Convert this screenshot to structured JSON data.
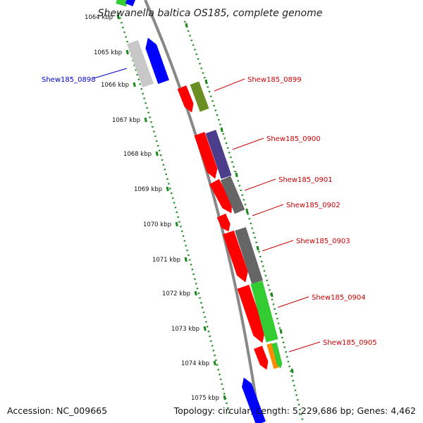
{
  "title": "Shewanella baltica OS185, complete genome",
  "ticks": [
    "1064 kbp",
    "1065 kbp",
    "1066 kbp",
    "1067 kbp",
    "1068 kbp",
    "1069 kbp",
    "1070 kbp",
    "1071 kbp",
    "1072 kbp",
    "1073 kbp",
    "1074 kbp",
    "1075 kbp"
  ],
  "gene_labels": [
    {
      "name": "Shew185_0898",
      "color": "#0000cc"
    },
    {
      "name": "Shew185_0899",
      "color": "#cc0000"
    },
    {
      "name": "Shew185_0900",
      "color": "#cc0000"
    },
    {
      "name": "Shew185_0901",
      "color": "#cc0000"
    },
    {
      "name": "Shew185_0902",
      "color": "#cc0000"
    },
    {
      "name": "Shew185_0903",
      "color": "#cc0000"
    },
    {
      "name": "Shew185_0904",
      "color": "#cc0000"
    },
    {
      "name": "Shew185_0905",
      "color": "#cc0000"
    }
  ],
  "footer": {
    "accession": "Accession: NC_009665",
    "summary": "Topology: circular; Length: 5,229,686 bp; Genes: 4,462"
  },
  "colors": {
    "backbone": "#888888",
    "dots": "#1a8a1a",
    "red": "#ff0000",
    "blue": "#0000ff",
    "olive": "#6b8e23",
    "purple": "#4b3c8c",
    "gray": "#666666",
    "lightgray": "#c8c8c8",
    "green": "#33cc33",
    "orange": "#ff8c00"
  }
}
